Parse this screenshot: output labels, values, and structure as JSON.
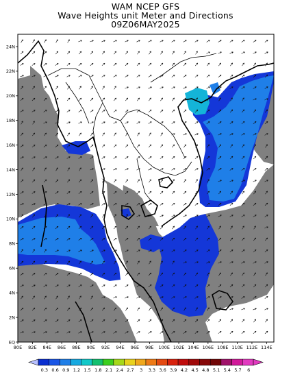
{
  "title": {
    "line1": "WAM NCEP GFS",
    "line2": "Wave Heights unit Meter and Directions",
    "line3": "09Z06MAY2025"
  },
  "axes": {
    "lon_labels": [
      "80E",
      "82E",
      "84E",
      "86E",
      "88E",
      "90E",
      "92E",
      "94E",
      "96E",
      "98E",
      "100E",
      "102E",
      "104E",
      "106E",
      "108E",
      "110E",
      "112E",
      "114E"
    ],
    "lat_labels": [
      "EQ",
      "2N",
      "4N",
      "6N",
      "8N",
      "10N",
      "12N",
      "14N",
      "16N",
      "18N",
      "20N",
      "22N",
      "24N"
    ],
    "lon_range": [
      80,
      115
    ],
    "lat_range": [
      0,
      25
    ]
  },
  "colorbar": {
    "labels": [
      "0.3",
      "0.6",
      "0.9",
      "1.2",
      "1.5",
      "1.8",
      "2.1",
      "2.4",
      "2.7",
      "3",
      "3.3",
      "3.6",
      "3.9",
      "4.2",
      "4.5",
      "4.8",
      "5.1",
      "5.4",
      "5.7",
      "6"
    ],
    "colors": [
      "#0a2fd0",
      "#1a56e6",
      "#1f7fe8",
      "#17a9e0",
      "#12c8c8",
      "#14c070",
      "#3ccf1f",
      "#a6d81a",
      "#e8d21e",
      "#f0a81c",
      "#ee7a16",
      "#e44a12",
      "#d8220e",
      "#c00d0d",
      "#a00a0a",
      "#860808",
      "#700606",
      "#a0126a",
      "#d11a9a",
      "#e23ac0"
    ]
  },
  "map": {
    "land_color": "#808080",
    "sea_low_color": "#ffffff",
    "wave_band_1_color": "#1437d8",
    "wave_band_2_color": "#1f7fe8",
    "wave_band_3_color": "#14b4d8",
    "coast_color": "#000000"
  }
}
